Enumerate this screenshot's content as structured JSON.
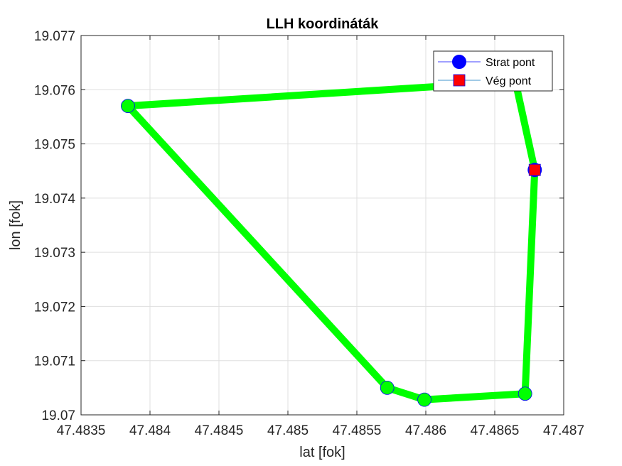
{
  "chart_data": {
    "type": "line",
    "title": "LLH koordináták",
    "xlabel": "lat [fok]",
    "ylabel": "lon [fok]",
    "xlim": [
      47.4835,
      47.487
    ],
    "ylim": [
      19.07,
      19.077
    ],
    "xticks": [
      47.4835,
      47.484,
      47.4845,
      47.485,
      47.4855,
      47.486,
      47.4865,
      47.487
    ],
    "xtick_labels": [
      "47.4835",
      "47.484",
      "47.4845",
      "47.485",
      "47.4855",
      "47.486",
      "47.4865",
      "47.487"
    ],
    "yticks": [
      19.07,
      19.071,
      19.072,
      19.073,
      19.074,
      19.075,
      19.076,
      19.077
    ],
    "ytick_labels": [
      "19.07",
      "19.071",
      "19.072",
      "19.073",
      "19.074",
      "19.075",
      "19.076",
      "19.077"
    ],
    "grid": true,
    "legend_position": "top-right",
    "path": {
      "color": "#00ff00",
      "x": [
        47.48679,
        47.48665,
        47.48384,
        47.48572,
        47.48599,
        47.48672,
        47.48679
      ],
      "y": [
        19.07452,
        19.07615,
        19.0757,
        19.0705,
        19.07028,
        19.07039,
        19.07452
      ]
    },
    "markers": {
      "face_color": "#00ff00",
      "edge_color": "#0000ff",
      "x": [
        47.48384,
        47.48572,
        47.48599,
        47.48672
      ],
      "y": [
        19.0757,
        19.0705,
        19.07028,
        19.07039
      ]
    },
    "series": [
      {
        "name": "Strat pont",
        "marker": "circle",
        "color": "#0000ff",
        "x": [
          47.48679
        ],
        "y": [
          19.07452
        ]
      },
      {
        "name": "Vég pont",
        "marker": "square",
        "color": "#ff0000",
        "x": [
          47.48679
        ],
        "y": [
          19.07452
        ]
      }
    ]
  }
}
